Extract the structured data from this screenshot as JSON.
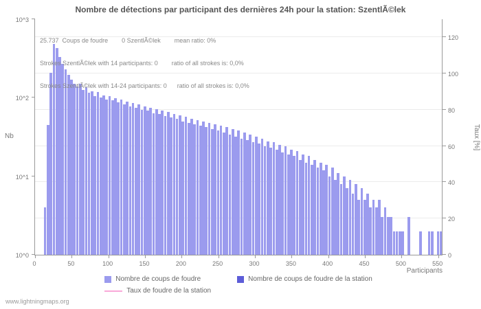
{
  "page": {
    "watermark": "www.lightningmaps.org"
  },
  "legend": {
    "items": [
      {
        "label": "Nombre de coups de foudre",
        "color": "#9b9bee",
        "type": "square"
      },
      {
        "label": "Nombre de coups de foudre de la station",
        "color": "#5d5dd8",
        "type": "square"
      },
      {
        "label": "Taux de foudre de la station",
        "color": "#f9a8d8",
        "type": "line"
      }
    ]
  },
  "chart_data": {
    "type": "bar",
    "title": "Nombre de détections par participant des dernières 24h pour la station: SzentlÃ©lek",
    "xlabel": "Participants",
    "ylabel_left": "Nb",
    "ylabel_right": "Taux [%]",
    "y_scale_left": "log10",
    "ylim_left": [
      1,
      1000
    ],
    "y_ticks_left": [
      "10^0",
      "10^1",
      "10^2",
      "10^3"
    ],
    "right_axis_max": 130,
    "y_ticks_right": [
      0,
      20,
      40,
      60,
      80,
      100,
      120
    ],
    "xlim": [
      0,
      555
    ],
    "x_ticks": [
      0,
      50,
      100,
      150,
      200,
      250,
      300,
      350,
      400,
      450,
      500,
      550
    ],
    "x_start": 0,
    "bin_width": 4,
    "bar_color": "#9b9bee",
    "grid": "horizontal",
    "legend_position": "bottom",
    "annotations": [
      "25.737  Coups de foudre        0 SzentlÃ©lek        mean ratio: 0%",
      "Strokes SzentlÃ©lek with 14 participants: 0        ratio of all strokes is: 0,0%",
      "Strokes SzentlÃ©lek with 14-24 participants: 0      ratio of all strokes is: 0,0%"
    ],
    "series": [
      {
        "name": "Nombre de coups de foudre",
        "total_strokes_label": "25.737",
        "values_binned": [
          0,
          0,
          0,
          4,
          45,
          210,
          480,
          430,
          330,
          270,
          230,
          195,
          170,
          150,
          140,
          150,
          125,
          135,
          115,
          120,
          105,
          118,
          100,
          108,
          95,
          104,
          92,
          98,
          88,
          95,
          82,
          90,
          78,
          86,
          74,
          82,
          70,
          78,
          68,
          74,
          64,
          72,
          62,
          68,
          58,
          66,
          56,
          62,
          54,
          60,
          50,
          57,
          48,
          54,
          46,
          52,
          44,
          50,
          42,
          48,
          40,
          46,
          38,
          44,
          36,
          42,
          34,
          40,
          32,
          38,
          30,
          36,
          29,
          34,
          27,
          32,
          26,
          30,
          24,
          28,
          23,
          27,
          22,
          25,
          20,
          24,
          19,
          22,
          18,
          21,
          16,
          19,
          15,
          18,
          14,
          16,
          13,
          15,
          12,
          14,
          10,
          13,
          9,
          11,
          8,
          10,
          7,
          9,
          6,
          8,
          5,
          7,
          5,
          6,
          4,
          5,
          4,
          5,
          3,
          4,
          3,
          3,
          2,
          2,
          2,
          2,
          0,
          3,
          0,
          0,
          0,
          2,
          0,
          0,
          2,
          2,
          0,
          2,
          2
        ]
      },
      {
        "name": "Nombre de coups de foudre de la station",
        "constant_value": 0
      },
      {
        "name": "Taux de foudre de la station",
        "constant_value": 0,
        "unit": "%"
      }
    ]
  }
}
